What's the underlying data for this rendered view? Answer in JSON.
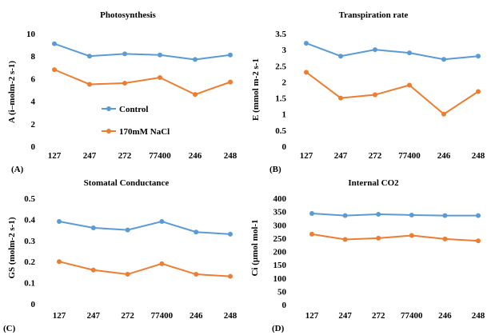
{
  "colors": {
    "control": "#5b9bd5",
    "nacl": "#ed7d31"
  },
  "legend": {
    "control": "Control",
    "nacl": "170mM NaCl"
  },
  "chart_data": [
    {
      "type": "line",
      "panel": "(A)",
      "title": "Photosynthesis",
      "ylabel": "A (i–molm-2 s-1)",
      "xlabel": "",
      "categories": [
        "127",
        "247",
        "272",
        "77400",
        "246",
        "248"
      ],
      "ylim": [
        0,
        10
      ],
      "yticks": [
        "0",
        "2",
        "4",
        "6",
        "8",
        "10"
      ],
      "grid": false,
      "legend_position": "center",
      "series": [
        {
          "name": "Control",
          "values": [
            9.1,
            8.0,
            8.2,
            8.1,
            7.7,
            8.1
          ]
        },
        {
          "name": "170mM NaCl",
          "values": [
            6.8,
            5.5,
            5.6,
            6.1,
            4.6,
            5.7
          ]
        }
      ]
    },
    {
      "type": "line",
      "panel": "(B)",
      "title": "Transpiration rate",
      "ylabel": "E (mmol m-2 s-1",
      "xlabel": "",
      "categories": [
        "127",
        "247",
        "272",
        "77400",
        "246",
        "248"
      ],
      "ylim": [
        0,
        3.5
      ],
      "yticks": [
        "0",
        "0.5",
        "1",
        "1.5",
        "2",
        "2.5",
        "3",
        "3.5"
      ],
      "grid": false,
      "series": [
        {
          "name": "Control",
          "values": [
            3.2,
            2.8,
            3.0,
            2.9,
            2.7,
            2.8
          ]
        },
        {
          "name": "170mM NaCl",
          "values": [
            2.3,
            1.5,
            1.6,
            1.9,
            1.0,
            1.7
          ]
        }
      ]
    },
    {
      "type": "line",
      "panel": "(C)",
      "title": "Stomatal Conductance",
      "ylabel": "GS (molm-2 s-1)",
      "xlabel": "",
      "categories": [
        "127",
        "247",
        "272",
        "77400",
        "246",
        "248"
      ],
      "ylim": [
        0,
        0.5
      ],
      "yticks": [
        "0",
        "0.1",
        "0.2",
        "0.3",
        "0.4",
        "0.5"
      ],
      "grid": false,
      "series": [
        {
          "name": "Control",
          "values": [
            0.39,
            0.36,
            0.35,
            0.39,
            0.34,
            0.33
          ]
        },
        {
          "name": "170mM NaCl",
          "values": [
            0.2,
            0.16,
            0.14,
            0.19,
            0.14,
            0.13
          ]
        }
      ]
    },
    {
      "type": "line",
      "panel": "(D)",
      "title": "Internal CO2",
      "ylabel": "Ci (µmol mol-1",
      "xlabel": "",
      "categories": [
        "127",
        "247",
        "272",
        "77400",
        "246",
        "248"
      ],
      "ylim": [
        0,
        400
      ],
      "yticks": [
        "0",
        "50",
        "100",
        "150",
        "200",
        "250",
        "300",
        "350",
        "400"
      ],
      "grid": false,
      "series": [
        {
          "name": "Control",
          "values": [
            343,
            335,
            340,
            337,
            335,
            335
          ]
        },
        {
          "name": "170mM NaCl",
          "values": [
            265,
            245,
            250,
            260,
            247,
            240
          ]
        }
      ]
    }
  ]
}
